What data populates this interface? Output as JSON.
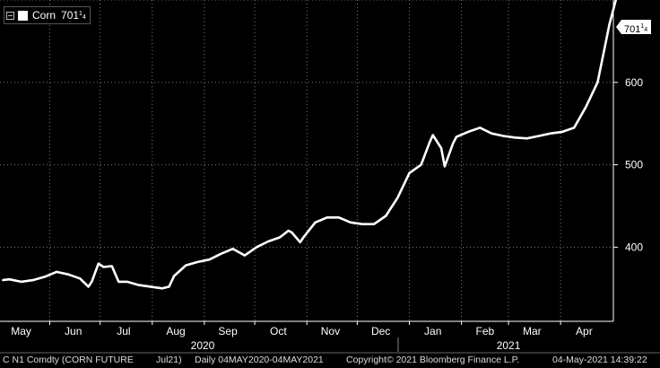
{
  "legend": {
    "series_name": "Corn",
    "value": "701",
    "fraction": "1/4"
  },
  "last_value_tag": {
    "value": "701",
    "fraction": "1/4"
  },
  "footer": {
    "ticker": "C N1 Comdty (CORN FUTURE",
    "contract": "Jul21)",
    "range": "Daily 04MAY2020-04MAY2021",
    "copyright": "Copyright© 2021 Bloomberg Finance L.P.",
    "timestamp": "04-May-2021 14:39:22"
  },
  "colors": {
    "background": "#000000",
    "line": "#ffffff",
    "grid": "#7a7a7a",
    "text": "#ffffff"
  },
  "chart_data": {
    "type": "line",
    "title": "",
    "xlabel": "",
    "ylabel": "",
    "grid": true,
    "y_axis_side": "right",
    "legend_position": "top-left",
    "ylim": [
      310,
      700
    ],
    "yticks": [
      400,
      500,
      600
    ],
    "xlim": [
      "2020-05-04",
      "2021-05-04"
    ],
    "month_ticks": [
      "May",
      "Jun",
      "Jul",
      "Aug",
      "Sep",
      "Oct",
      "Nov",
      "Dec",
      "Jan",
      "Feb",
      "Mar",
      "Apr"
    ],
    "month_dates": [
      "2020-05-15",
      "2020-06-15",
      "2020-07-15",
      "2020-08-15",
      "2020-09-15",
      "2020-10-15",
      "2020-11-15",
      "2020-12-15",
      "2021-01-15",
      "2021-02-15",
      "2021-03-15",
      "2021-04-15"
    ],
    "year_labels": [
      {
        "label": "2020",
        "date": "2020-08-31"
      },
      {
        "label": "2021",
        "date": "2021-03-01"
      }
    ],
    "series": [
      {
        "name": "Corn",
        "x": [
          "2020-05-04",
          "2020-05-08",
          "2020-05-15",
          "2020-05-22",
          "2020-05-29",
          "2020-06-05",
          "2020-06-12",
          "2020-06-19",
          "2020-06-24",
          "2020-06-26",
          "2020-06-30",
          "2020-07-03",
          "2020-07-08",
          "2020-07-12",
          "2020-07-17",
          "2020-07-24",
          "2020-07-31",
          "2020-08-07",
          "2020-08-11",
          "2020-08-14",
          "2020-08-21",
          "2020-08-28",
          "2020-09-04",
          "2020-09-11",
          "2020-09-18",
          "2020-09-25",
          "2020-10-02",
          "2020-10-09",
          "2020-10-16",
          "2020-10-21",
          "2020-10-23",
          "2020-10-28",
          "2020-10-30",
          "2020-11-06",
          "2020-11-13",
          "2020-11-20",
          "2020-11-27",
          "2020-12-04",
          "2020-12-11",
          "2020-12-18",
          "2020-12-25",
          "2021-01-01",
          "2021-01-08",
          "2021-01-13",
          "2021-01-15",
          "2021-01-20",
          "2021-01-22",
          "2021-01-27",
          "2021-01-29",
          "2021-02-05",
          "2021-02-12",
          "2021-02-19",
          "2021-02-26",
          "2021-03-05",
          "2021-03-12",
          "2021-03-19",
          "2021-03-26",
          "2021-04-02",
          "2021-04-09",
          "2021-04-16",
          "2021-04-23",
          "2021-04-28",
          "2021-04-30",
          "2021-05-04"
        ],
        "y": [
          360,
          361,
          358,
          360,
          364,
          370,
          367,
          362,
          352,
          358,
          380,
          376,
          377,
          358,
          358,
          354,
          352,
          350,
          352,
          365,
          378,
          382,
          385,
          392,
          398,
          390,
          400,
          407,
          412,
          420,
          418,
          406,
          412,
          430,
          436,
          436,
          430,
          428,
          428,
          438,
          460,
          490,
          500,
          527,
          536,
          520,
          498,
          526,
          534,
          540,
          545,
          538,
          535,
          533,
          532,
          535,
          538,
          540,
          545,
          570,
          600,
          650,
          670,
          701
        ]
      }
    ]
  }
}
